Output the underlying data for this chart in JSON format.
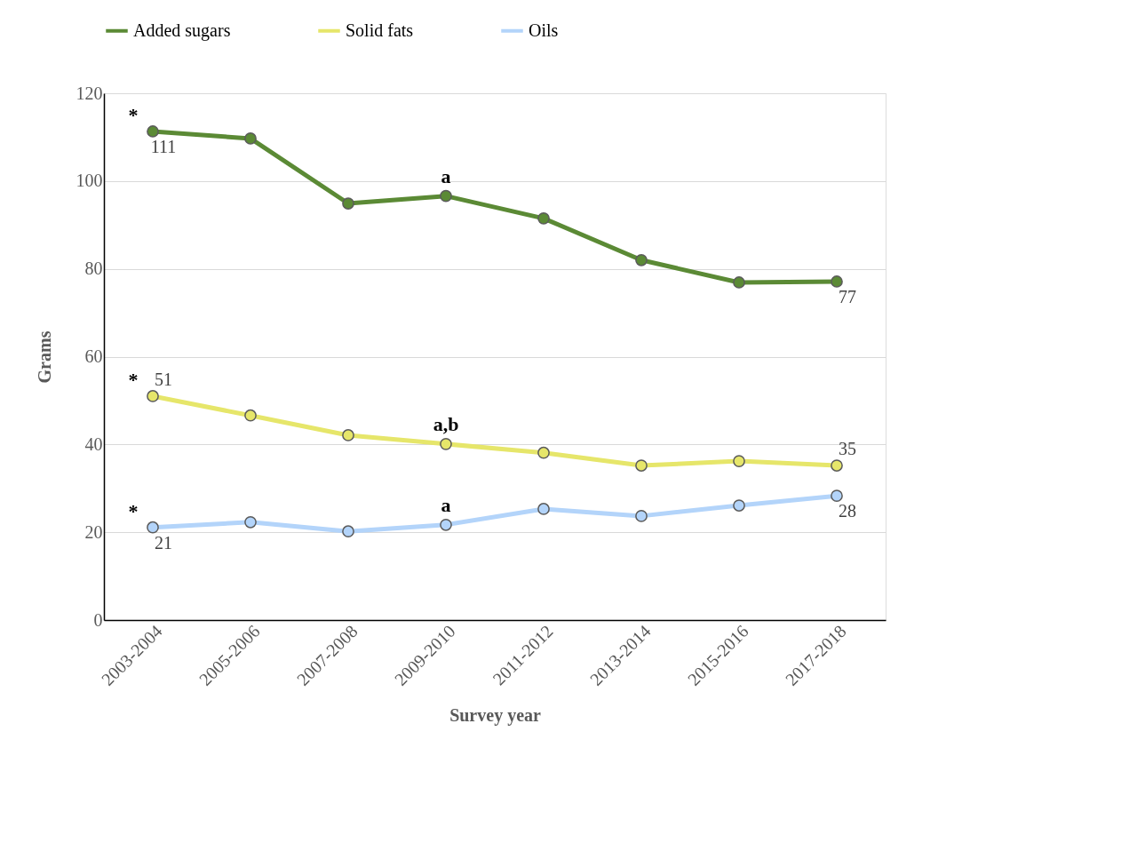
{
  "chart_data": {
    "type": "line",
    "xlabel": "Survey year",
    "ylabel": "Grams",
    "categories": [
      "2003-2004",
      "2005-2006",
      "2007-2008",
      "2009-2010",
      "2011-2012",
      "2013-2014",
      "2015-2016",
      "2017-2018"
    ],
    "series": [
      {
        "name": "Added sugars",
        "color": "#5b8a35",
        "values": [
          111.3,
          109.7,
          94.9,
          96.6,
          91.5,
          82.0,
          76.9,
          77.1
        ],
        "value_labels": [
          "111",
          null,
          null,
          null,
          null,
          null,
          null,
          "77"
        ]
      },
      {
        "name": "Solid fats",
        "color": "#e6e66a",
        "values": [
          51.0,
          46.6,
          42.1,
          40.1,
          38.1,
          35.2,
          36.2,
          35.2
        ],
        "value_labels": [
          "51",
          null,
          null,
          null,
          null,
          null,
          null,
          "35"
        ]
      },
      {
        "name": "Oils",
        "color": "#b3d4fa",
        "values": [
          21.1,
          22.3,
          20.2,
          21.7,
          25.3,
          23.7,
          26.1,
          28.3
        ],
        "value_labels": [
          "21",
          null,
          null,
          null,
          null,
          null,
          null,
          "28"
        ]
      }
    ],
    "annotations": [
      {
        "text": "*",
        "x": "2003-2004",
        "y": 111.3
      },
      {
        "text": "*",
        "x": "2003-2004",
        "y": 51.0
      },
      {
        "text": "*",
        "x": "2003-2004",
        "y": 21.1
      },
      {
        "text": "a",
        "x": "2009-2010",
        "y": 96.6
      },
      {
        "text": "a,b",
        "x": "2009-2010",
        "y": 40.1
      },
      {
        "text": "a",
        "x": "2009-2010",
        "y": 21.7
      }
    ],
    "ylim": [
      0,
      120
    ],
    "yticks": [
      0,
      20,
      40,
      60,
      80,
      100,
      120
    ],
    "grid": "y",
    "legend": "top",
    "marker": "circle",
    "line_style": "solid"
  }
}
